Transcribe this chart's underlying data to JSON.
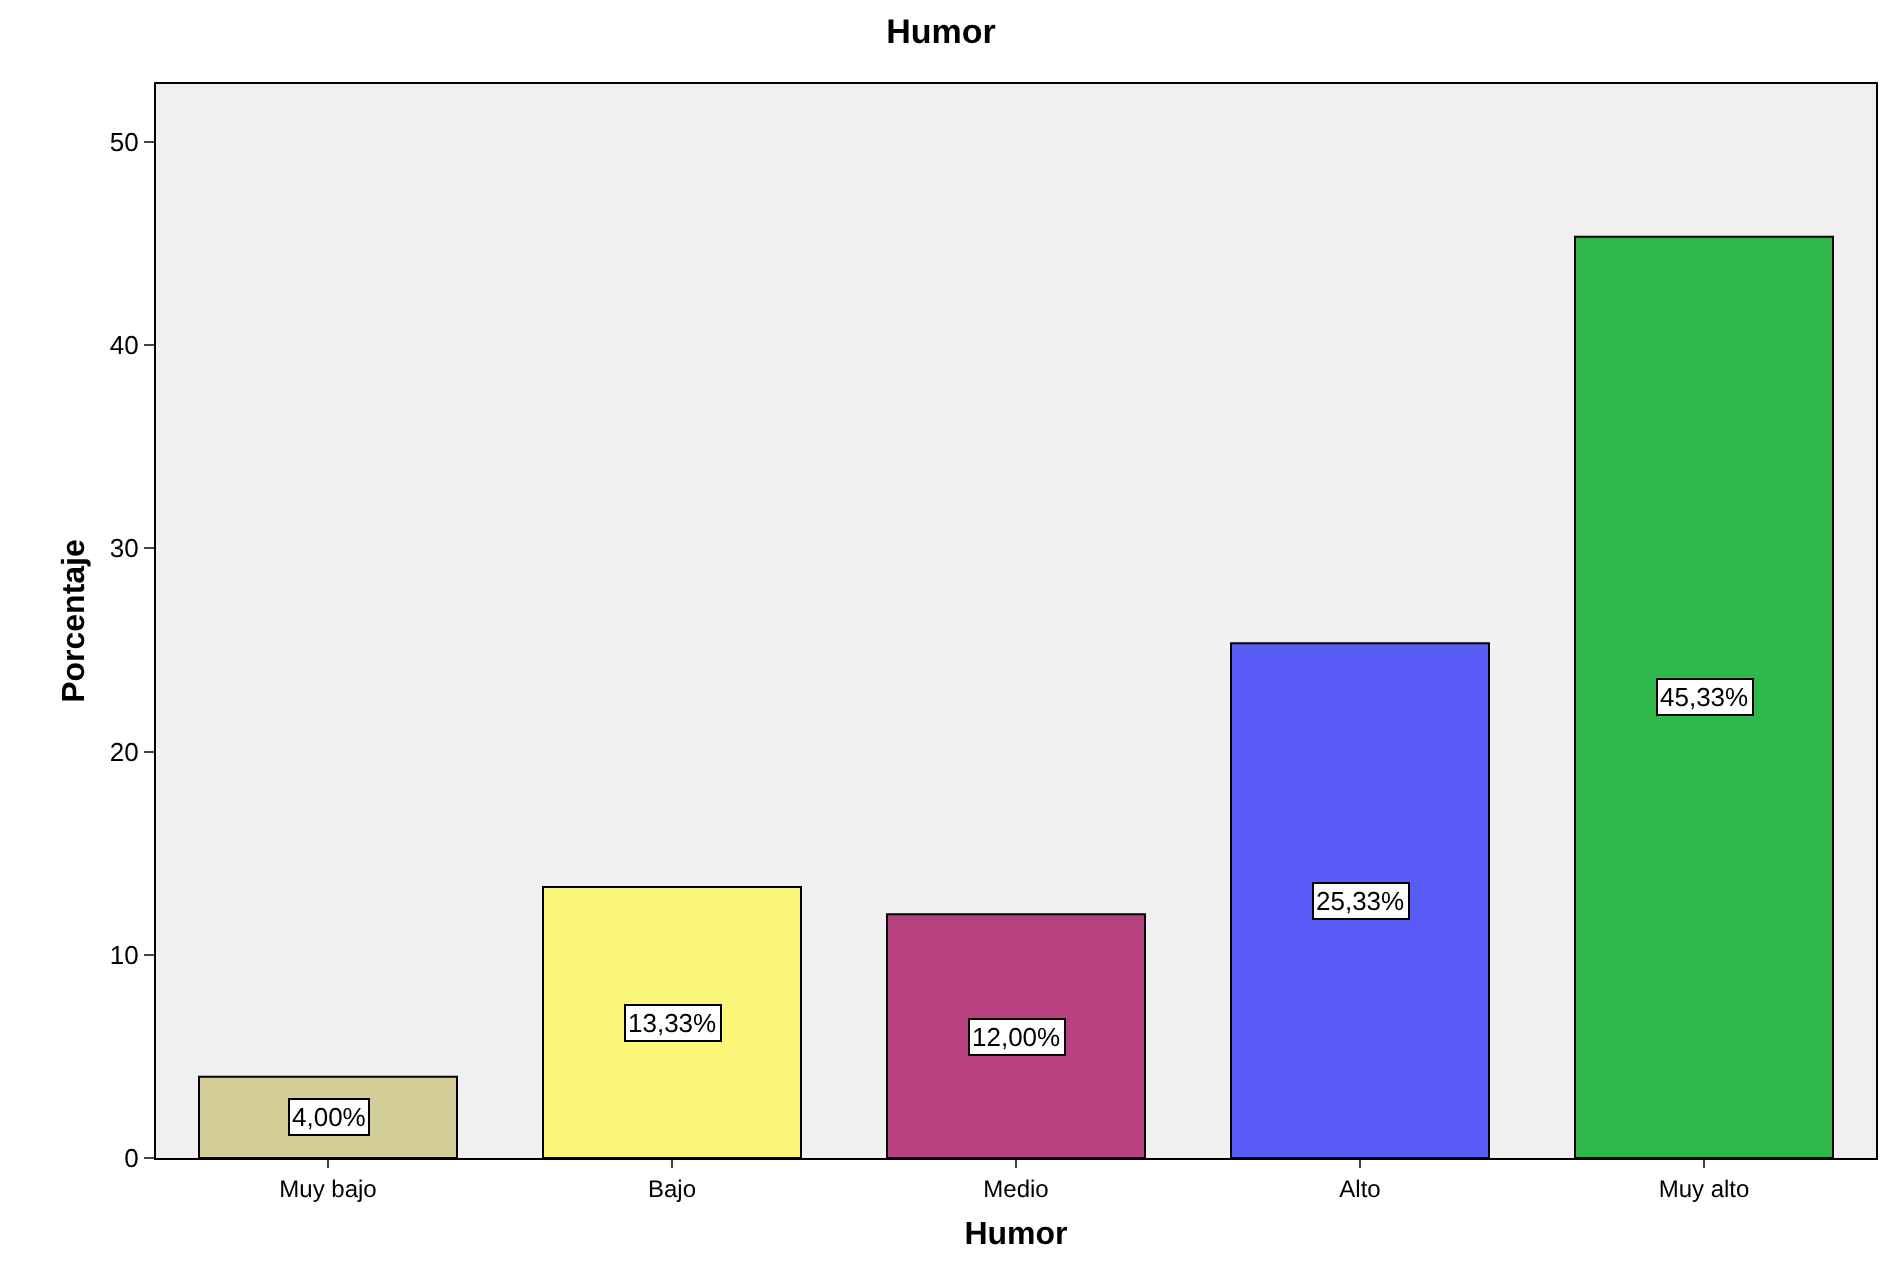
{
  "chart_data": {
    "type": "bar",
    "title": "Humor",
    "xlabel": "Humor",
    "ylabel": "Porcentaje",
    "categories": [
      "Muy bajo",
      "Bajo",
      "Medio",
      "Alto",
      "Muy alto"
    ],
    "values": [
      4.0,
      13.33,
      12.0,
      25.33,
      45.33
    ],
    "value_labels": [
      "4,00%",
      "13,33%",
      "12,00%",
      "25,33%",
      "45,33%"
    ],
    "colors": [
      "#d3ce97",
      "#faf77a",
      "#b7407e",
      "#5a5cf8",
      "#2eb84a"
    ],
    "ylim": [
      0,
      52.85
    ],
    "yticks": [
      0,
      10,
      20,
      30,
      40,
      50
    ],
    "grid": false,
    "legend": false
  }
}
